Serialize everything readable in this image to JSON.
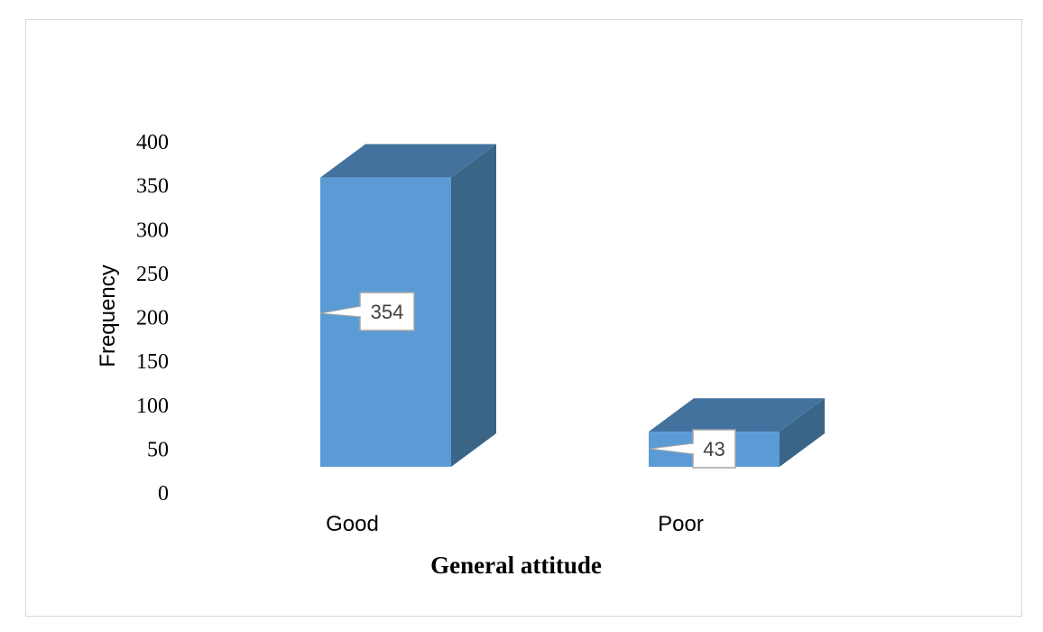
{
  "chart_data": {
    "type": "bar",
    "style": "3d-column",
    "categories": [
      "Good",
      "Poor"
    ],
    "values": [
      354,
      43
    ],
    "data_labels": [
      "354",
      "43"
    ],
    "title": "",
    "xlabel": "General attitude",
    "ylabel": "Frequency",
    "ylim": [
      0,
      400
    ],
    "yticks": [
      "0",
      "50",
      "100",
      "150",
      "200",
      "250",
      "300",
      "350",
      "400"
    ],
    "grid": false,
    "legend": "none",
    "colors": {
      "front": "#5b9bd5",
      "top": "#44729e",
      "side": "#3a6586",
      "label_border": "#a6a6a6"
    }
  }
}
